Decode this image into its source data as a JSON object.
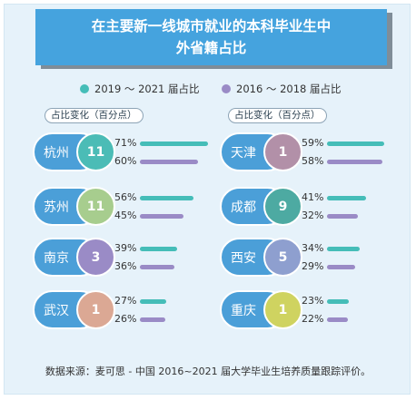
{
  "title": {
    "line1": "在主要新一线城市就业的本科毕业生中",
    "line2": "外省籍占比"
  },
  "legend": [
    {
      "label": "2019 ～ 2021 届占比",
      "color": "#45bdb8"
    },
    {
      "label": "2016 ～ 2018 届占比",
      "color": "#9a8bc6"
    }
  ],
  "change_label": "占比变化（百分点）",
  "source": "数据来源：麦可思 - 中国 2016~2021 届大学毕业生培养质量跟踪评价。",
  "colors": {
    "pill": "#4b9fd8",
    "recent": "#45bdb8",
    "earlier": "#9a8bc6"
  },
  "chart_data": {
    "type": "bar",
    "unit": "%",
    "columns": [
      {
        "cities": [
          {
            "city": "杭州",
            "change": 11,
            "recent": 71,
            "earlier": 60,
            "circle_color": "#4bbcb6"
          },
          {
            "city": "苏州",
            "change": 11,
            "recent": 56,
            "earlier": 45,
            "circle_color": "#a7cd8e"
          },
          {
            "city": "南京",
            "change": 3,
            "recent": 39,
            "earlier": 36,
            "circle_color": "#9a8bc6"
          },
          {
            "city": "武汉",
            "change": 1,
            "recent": 27,
            "earlier": 26,
            "circle_color": "#dba894"
          }
        ]
      },
      {
        "cities": [
          {
            "city": "天津",
            "change": 1,
            "recent": 59,
            "earlier": 58,
            "circle_color": "#b290a8"
          },
          {
            "city": "成都",
            "change": 9,
            "recent": 41,
            "earlier": 32,
            "circle_color": "#4daaa2"
          },
          {
            "city": "西安",
            "change": 5,
            "recent": 34,
            "earlier": 29,
            "circle_color": "#8e9fcf"
          },
          {
            "city": "重庆",
            "change": 1,
            "recent": 23,
            "earlier": 22,
            "circle_color": "#cfd360"
          }
        ]
      }
    ]
  }
}
